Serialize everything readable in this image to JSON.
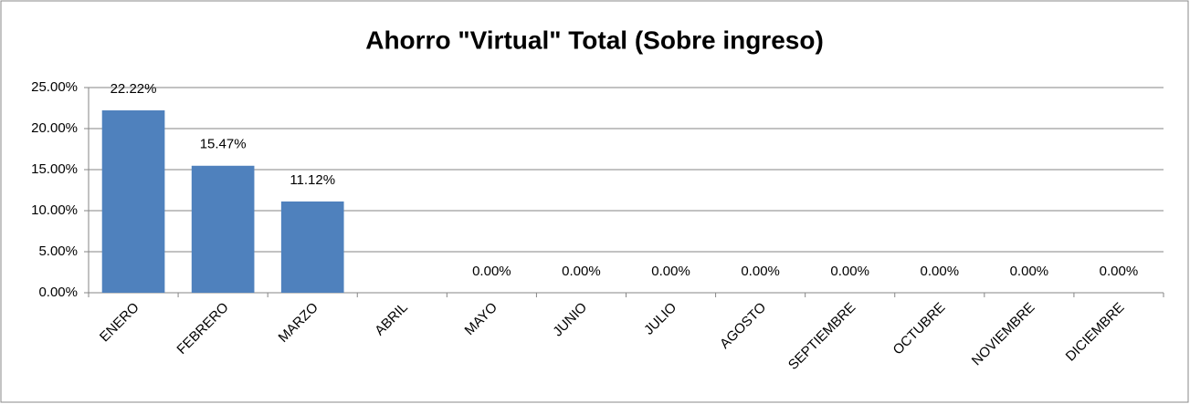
{
  "chart_data": {
    "type": "bar",
    "title": "Ahorro \"Virtual\" Total (Sobre ingreso)",
    "categories": [
      "ENERO",
      "FEBRERO",
      "MARZO",
      "ABRIL",
      "MAYO",
      "JUNIO",
      "JULIO",
      "AGOSTO",
      "SEPTIEMBRE",
      "OCTUBRE",
      "NOVIEMBRE",
      "DICIEMBRE"
    ],
    "values": [
      22.22,
      15.47,
      11.12,
      null,
      0,
      0,
      0,
      0,
      0,
      0,
      0,
      0
    ],
    "value_labels": [
      "22.22%",
      "15.47%",
      "11.12%",
      null,
      "0.00%",
      "0.00%",
      "0.00%",
      "0.00%",
      "0.00%",
      "0.00%",
      "0.00%",
      "0.00%"
    ],
    "color": "#4f81bd",
    "ylim": [
      0,
      25
    ],
    "yticks": [
      {
        "value": 0,
        "label": "0.00%"
      },
      {
        "value": 5,
        "label": "5.00%"
      },
      {
        "value": 10,
        "label": "10.00%"
      },
      {
        "value": 15,
        "label": "15.00%"
      },
      {
        "value": 20,
        "label": "20.00%"
      },
      {
        "value": 25,
        "label": "25.00%"
      }
    ],
    "grid": true
  }
}
